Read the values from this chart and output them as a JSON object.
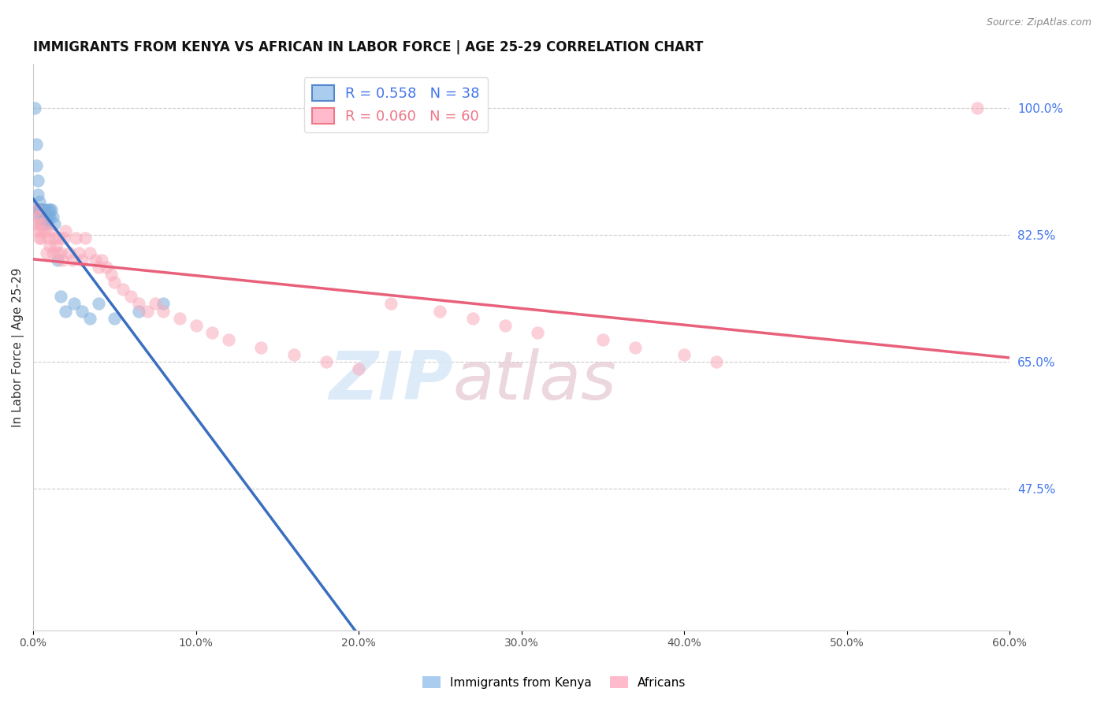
{
  "title": "IMMIGRANTS FROM KENYA VS AFRICAN IN LABOR FORCE | AGE 25-29 CORRELATION CHART",
  "source_text": "Source: ZipAtlas.com",
  "ylabel": "In Labor Force | Age 25-29",
  "xmin": 0.0,
  "xmax": 0.6,
  "ymin": 0.28,
  "ymax": 1.06,
  "grid_yticks": [
    1.0,
    0.825,
    0.65,
    0.475
  ],
  "xtick_labels": [
    "0.0%",
    "10.0%",
    "20.0%",
    "30.0%",
    "40.0%",
    "50.0%",
    "60.0%"
  ],
  "xtick_vals": [
    0.0,
    0.1,
    0.2,
    0.3,
    0.4,
    0.5,
    0.6
  ],
  "right_ytick_labels": [
    "100.0%",
    "82.5%",
    "65.0%",
    "47.5%"
  ],
  "right_ytick_vals": [
    1.0,
    0.825,
    0.65,
    0.475
  ],
  "kenya_R": 0.558,
  "kenya_N": 38,
  "african_R": 0.06,
  "african_N": 60,
  "kenya_color": "#7AACDC",
  "african_color": "#F9AABB",
  "kenya_line_color": "#3A6EC0",
  "african_line_color": "#E8607A",
  "kenya_scatter_x": [
    0.001,
    0.002,
    0.002,
    0.003,
    0.003,
    0.003,
    0.004,
    0.004,
    0.004,
    0.004,
    0.005,
    0.005,
    0.005,
    0.005,
    0.006,
    0.006,
    0.006,
    0.007,
    0.007,
    0.008,
    0.008,
    0.009,
    0.009,
    0.01,
    0.01,
    0.011,
    0.012,
    0.013,
    0.015,
    0.017,
    0.02,
    0.025,
    0.03,
    0.035,
    0.04,
    0.05,
    0.065,
    0.08
  ],
  "kenya_scatter_y": [
    1.0,
    0.95,
    0.92,
    0.9,
    0.88,
    0.86,
    0.87,
    0.86,
    0.86,
    0.85,
    0.86,
    0.86,
    0.85,
    0.84,
    0.86,
    0.85,
    0.84,
    0.86,
    0.84,
    0.85,
    0.84,
    0.86,
    0.85,
    0.86,
    0.85,
    0.86,
    0.85,
    0.84,
    0.79,
    0.74,
    0.72,
    0.73,
    0.72,
    0.71,
    0.73,
    0.71,
    0.72,
    0.73
  ],
  "african_scatter_x": [
    0.001,
    0.002,
    0.003,
    0.003,
    0.004,
    0.004,
    0.005,
    0.005,
    0.006,
    0.007,
    0.008,
    0.009,
    0.01,
    0.011,
    0.012,
    0.013,
    0.014,
    0.015,
    0.016,
    0.017,
    0.018,
    0.019,
    0.02,
    0.022,
    0.024,
    0.026,
    0.028,
    0.03,
    0.032,
    0.035,
    0.038,
    0.04,
    0.042,
    0.045,
    0.048,
    0.05,
    0.055,
    0.06,
    0.065,
    0.07,
    0.075,
    0.08,
    0.09,
    0.1,
    0.11,
    0.12,
    0.14,
    0.16,
    0.18,
    0.2,
    0.22,
    0.25,
    0.27,
    0.29,
    0.31,
    0.35,
    0.37,
    0.4,
    0.42,
    0.58
  ],
  "african_scatter_y": [
    0.84,
    0.86,
    0.83,
    0.85,
    0.82,
    0.84,
    0.83,
    0.82,
    0.84,
    0.83,
    0.8,
    0.82,
    0.81,
    0.83,
    0.8,
    0.82,
    0.81,
    0.8,
    0.82,
    0.8,
    0.79,
    0.82,
    0.83,
    0.8,
    0.79,
    0.82,
    0.8,
    0.79,
    0.82,
    0.8,
    0.79,
    0.78,
    0.79,
    0.78,
    0.77,
    0.76,
    0.75,
    0.74,
    0.73,
    0.72,
    0.73,
    0.72,
    0.71,
    0.7,
    0.69,
    0.68,
    0.67,
    0.66,
    0.65,
    0.64,
    0.73,
    0.72,
    0.71,
    0.7,
    0.69,
    0.68,
    0.67,
    0.66,
    0.65,
    1.0
  ],
  "watermark_zip": "ZIP",
  "watermark_atlas": "atlas",
  "background_color": "#FFFFFF",
  "grid_color": "#CCCCCC",
  "title_fontsize": 12,
  "label_fontsize": 11,
  "tick_fontsize": 10,
  "right_tick_color": "#4477EE",
  "legend_box_color_kenya": "#AACCEE",
  "legend_box_color_african": "#FFBBCC",
  "legend_line_color_kenya": "#5588CC",
  "legend_line_color_african": "#EE7788"
}
